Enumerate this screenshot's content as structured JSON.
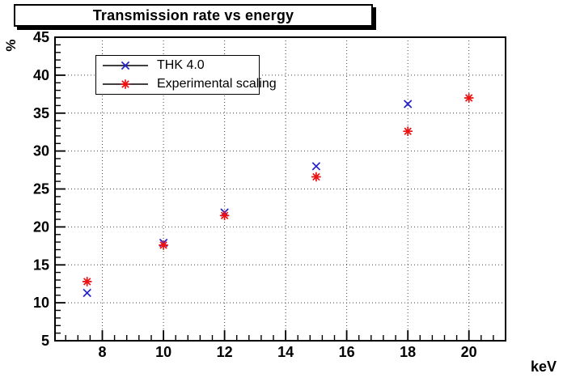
{
  "chart_data": {
    "type": "scatter",
    "title": "Transmission rate vs energy",
    "xlabel": "keV",
    "ylabel": "%",
    "xlim": [
      6.45,
      21.2
    ],
    "ylim": [
      5,
      45
    ],
    "x_ticks": [
      8,
      10,
      12,
      14,
      16,
      18,
      20
    ],
    "y_ticks": [
      5,
      10,
      15,
      20,
      25,
      30,
      35,
      40,
      45
    ],
    "x_minor_step": 0.4,
    "y_minor_step": 1,
    "grid": "dotted",
    "legend_position": "top-left",
    "background": "#ffffff",
    "frame_color": "#000000",
    "series": [
      {
        "name": "THK 4.0",
        "marker": "cross-x",
        "color": "#2222cc",
        "points": [
          [
            7.5,
            11.3
          ],
          [
            10,
            17.9
          ],
          [
            12,
            21.9
          ],
          [
            15,
            28.0
          ],
          [
            18,
            36.2
          ]
        ]
      },
      {
        "name": "Experimental scaling",
        "marker": "asterisk",
        "color": "#ee1111",
        "points": [
          [
            7.5,
            12.8
          ],
          [
            10,
            17.6
          ],
          [
            12,
            21.5
          ],
          [
            15,
            26.6
          ],
          [
            18,
            32.6
          ],
          [
            20,
            37.0
          ]
        ]
      }
    ]
  }
}
